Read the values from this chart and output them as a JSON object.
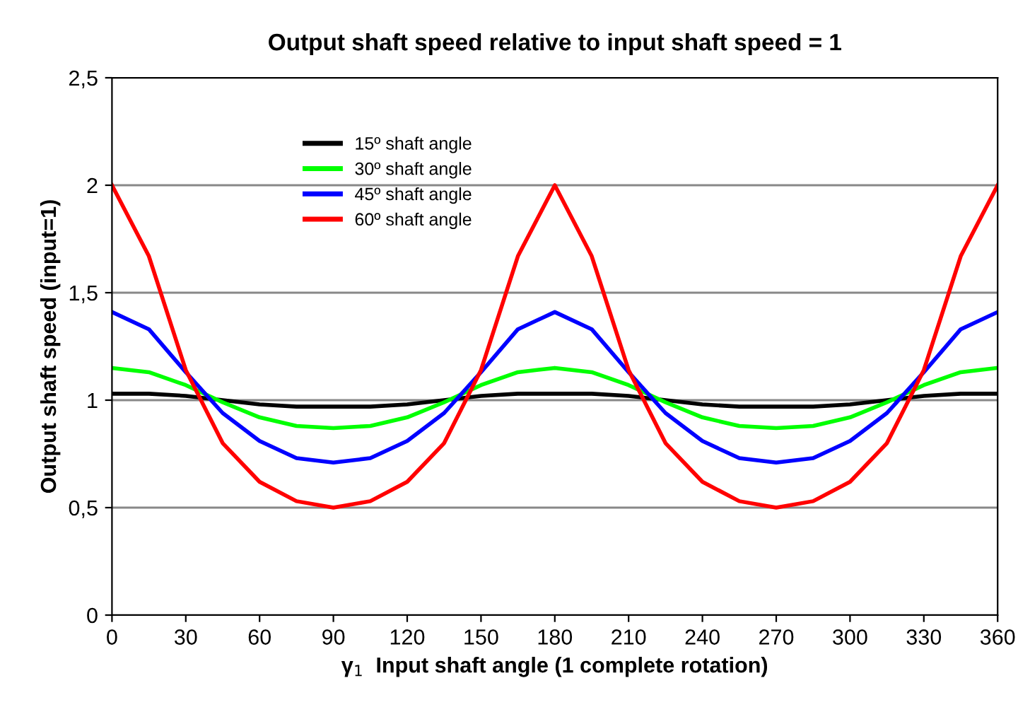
{
  "chart_data": {
    "type": "line",
    "title": "Output shaft speed relative to input shaft speed = 1",
    "xlabel": "γ$_{1}$  Input shaft angle (1 complete rotation)",
    "ylabel": "Output shaft speed (input=1)",
    "x": [
      0,
      15,
      30,
      45,
      60,
      75,
      90,
      105,
      120,
      135,
      150,
      165,
      180,
      195,
      210,
      225,
      240,
      255,
      270,
      285,
      300,
      315,
      330,
      345,
      360
    ],
    "series": [
      {
        "name": "15º shaft angle",
        "color": "#000000",
        "values": [
          1.03,
          1.03,
          1.02,
          1.0,
          0.98,
          0.97,
          0.97,
          0.97,
          0.98,
          1.0,
          1.02,
          1.03,
          1.03,
          1.03,
          1.02,
          1.0,
          0.98,
          0.97,
          0.97,
          0.97,
          0.98,
          1.0,
          1.02,
          1.03,
          1.03
        ]
      },
      {
        "name": "30º shaft angle",
        "color": "#00ff00",
        "values": [
          1.15,
          1.13,
          1.07,
          0.99,
          0.92,
          0.88,
          0.87,
          0.88,
          0.92,
          0.99,
          1.07,
          1.13,
          1.15,
          1.13,
          1.07,
          0.99,
          0.92,
          0.88,
          0.87,
          0.88,
          0.92,
          0.99,
          1.07,
          1.13,
          1.15
        ]
      },
      {
        "name": "45º shaft angle",
        "color": "#0000ff",
        "values": [
          1.41,
          1.33,
          1.13,
          0.94,
          0.81,
          0.73,
          0.71,
          0.73,
          0.81,
          0.94,
          1.13,
          1.33,
          1.41,
          1.33,
          1.13,
          0.94,
          0.81,
          0.73,
          0.71,
          0.73,
          0.81,
          0.94,
          1.13,
          1.33,
          1.41
        ]
      },
      {
        "name": "60º shaft angle",
        "color": "#ff0000",
        "values": [
          2,
          1.67,
          1.14,
          0.8,
          0.62,
          0.53,
          0.5,
          0.53,
          0.62,
          0.8,
          1.14,
          1.67,
          2,
          1.67,
          1.14,
          0.8,
          0.62,
          0.53,
          0.5,
          0.53,
          0.62,
          0.8,
          1.14,
          1.67,
          2
        ]
      }
    ],
    "xlim": [
      0,
      360
    ],
    "xticks": [
      0,
      30,
      60,
      90,
      120,
      150,
      180,
      210,
      240,
      270,
      300,
      330,
      360
    ],
    "ylim": [
      0,
      2.5
    ],
    "yticks": [
      0,
      {
        "value": 0.5,
        "label": "0,5"
      },
      1,
      {
        "value": 1.5,
        "label": "1,5"
      },
      2,
      {
        "value": 2.5,
        "label": "2,5"
      }
    ],
    "grid": "y",
    "legend": "top left",
    "marker": "none",
    "line_style": "solid"
  }
}
